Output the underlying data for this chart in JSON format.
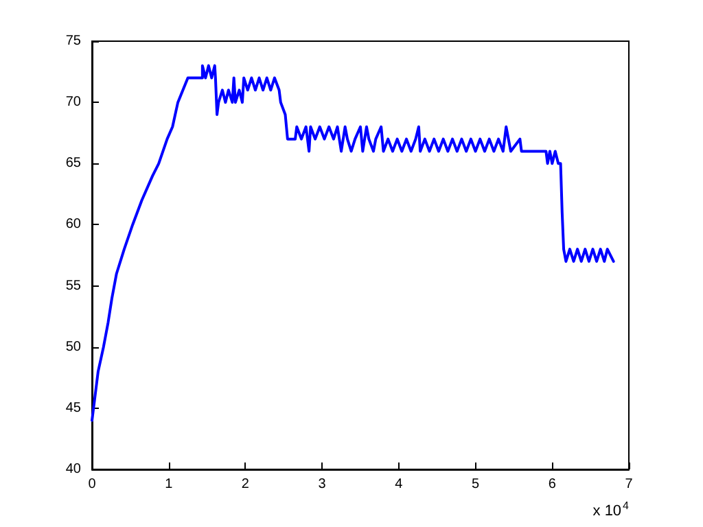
{
  "chart_data": {
    "type": "line",
    "color": "#0000ff",
    "marker": "none",
    "line_style": "solid",
    "grid": false,
    "xlim": [
      0,
      7
    ],
    "ylim": [
      40,
      75
    ],
    "xticks": [
      0,
      1,
      2,
      3,
      4,
      5,
      6,
      7
    ],
    "yticks": [
      40,
      45,
      50,
      55,
      60,
      65,
      70,
      75
    ],
    "annotations": [
      "x 10$^{4}$"
    ],
    "x": [
      0,
      0.04,
      0.08,
      0.15,
      0.21,
      0.26,
      0.32,
      0.42,
      0.53,
      0.65,
      0.79,
      0.87,
      0.98,
      1.05,
      1.12,
      1.25,
      1.44,
      1.44,
      1.48,
      1.52,
      1.56,
      1.6,
      1.61,
      1.63,
      1.65,
      1.7,
      1.74,
      1.78,
      1.83,
      1.85,
      1.87,
      1.92,
      1.96,
      1.98,
      2.03,
      2.08,
      2.13,
      2.18,
      2.23,
      2.28,
      2.33,
      2.38,
      2.44,
      2.46,
      2.52,
      2.55,
      2.65,
      2.67,
      2.73,
      2.79,
      2.83,
      2.85,
      2.91,
      2.97,
      3.03,
      3.09,
      3.15,
      3.2,
      3.25,
      3.3,
      3.33,
      3.38,
      3.43,
      3.5,
      3.53,
      3.58,
      3.61,
      3.67,
      3.7,
      3.77,
      3.8,
      3.86,
      3.92,
      3.98,
      4.04,
      4.1,
      4.16,
      4.22,
      4.26,
      4.28,
      4.34,
      4.4,
      4.46,
      4.52,
      4.58,
      4.64,
      4.7,
      4.76,
      4.82,
      4.88,
      4.94,
      5,
      5.06,
      5.12,
      5.18,
      5.24,
      5.3,
      5.36,
      5.4,
      5.43,
      5.46,
      5.58,
      5.6,
      5.92,
      5.94,
      5.97,
      6,
      6.04,
      6.08,
      6.11,
      6.13,
      6.15,
      6.18,
      6.23,
      6.28,
      6.33,
      6.38,
      6.43,
      6.48,
      6.53,
      6.58,
      6.63,
      6.68,
      6.72,
      6.8
    ],
    "values": [
      44,
      46,
      48,
      50,
      52,
      54,
      56,
      58,
      60,
      62,
      64,
      65,
      67,
      68,
      70,
      72,
      72,
      73,
      72,
      73,
      72,
      73,
      72,
      69,
      70,
      71,
      70,
      71,
      70,
      72,
      70,
      71,
      70,
      72,
      71,
      72,
      71,
      72,
      71,
      72,
      71,
      72,
      71,
      70,
      69,
      67,
      67,
      68,
      67,
      68,
      66,
      68,
      67,
      68,
      67,
      68,
      67,
      68,
      66,
      68,
      67,
      66,
      67,
      68,
      66,
      68,
      67,
      66,
      67,
      68,
      66,
      67,
      66,
      67,
      66,
      67,
      66,
      67,
      68,
      66,
      67,
      66,
      67,
      66,
      67,
      66,
      67,
      66,
      67,
      66,
      67,
      66,
      67,
      66,
      67,
      66,
      67,
      66,
      68,
      67,
      66,
      67,
      66,
      66,
      65,
      66,
      65,
      66,
      65,
      65,
      61,
      58,
      57,
      58,
      57,
      58,
      57,
      58,
      57,
      58,
      57,
      58,
      57,
      58,
      57
    ]
  }
}
